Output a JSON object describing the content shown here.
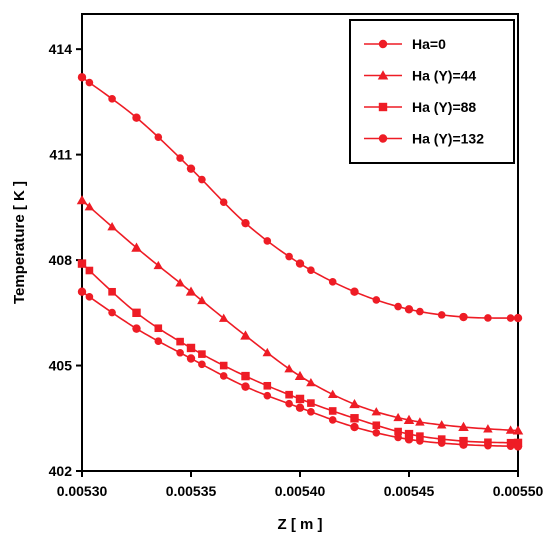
{
  "chart_data": {
    "type": "line",
    "xlabel": "Z [ m ]",
    "ylabel": "Temperature [ K ]",
    "xlim": [
      0.0053,
      0.0055
    ],
    "ylim": [
      402,
      415
    ],
    "xticks": [
      0.0053,
      0.00535,
      0.0054,
      0.00545,
      0.0055
    ],
    "xtick_labels": [
      "0.00530",
      "0.00535",
      "0.00540",
      "0.00545",
      "0.00550"
    ],
    "yticks": [
      402,
      405,
      408,
      411,
      414
    ],
    "ytick_labels": [
      "402",
      "405",
      "408",
      "411",
      "414"
    ],
    "grid": false,
    "legend_position": "top-right",
    "color": "#ee1c25",
    "x": [
      0.0053,
      0.005325,
      0.00535,
      0.005375,
      0.0054,
      0.005425,
      0.00545,
      0.005475,
      0.0055
    ],
    "series": [
      {
        "name": "Ha=0",
        "marker": "circle",
        "values": [
          413.2,
          412.05,
          410.6,
          409.05,
          407.9,
          407.1,
          406.6,
          406.38,
          406.35
        ]
      },
      {
        "name": "Ha (Y)=44",
        "marker": "triangle",
        "values": [
          409.7,
          408.35,
          407.1,
          405.85,
          404.7,
          403.9,
          403.45,
          403.25,
          403.15
        ]
      },
      {
        "name": "Ha (Y)=88",
        "marker": "square",
        "values": [
          407.9,
          406.5,
          405.5,
          404.7,
          404.05,
          403.5,
          403.05,
          402.85,
          402.8
        ]
      },
      {
        "name": "Ha (Y)=132",
        "marker": "circle",
        "values": [
          407.1,
          406.05,
          405.2,
          404.4,
          403.8,
          403.25,
          402.9,
          402.75,
          402.7
        ]
      }
    ]
  }
}
